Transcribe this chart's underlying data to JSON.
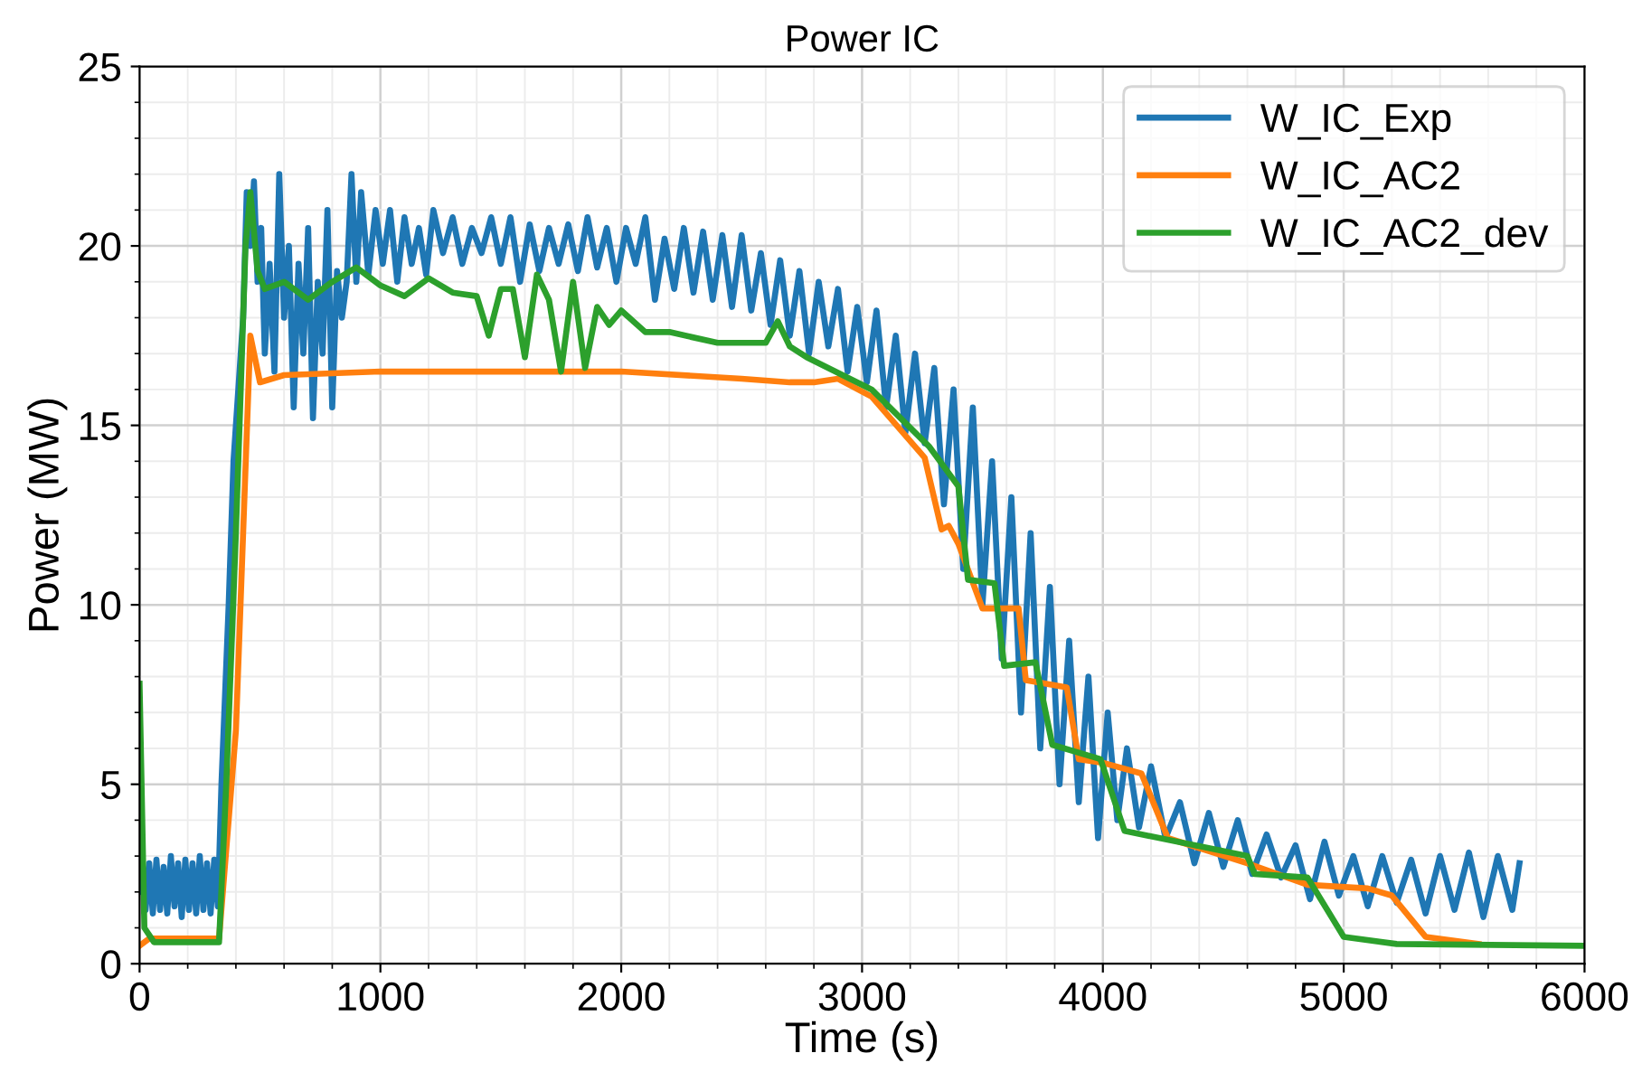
{
  "chart_data": {
    "type": "line",
    "title": "Power IC",
    "xlabel": "Time (s)",
    "ylabel": "Power (MW)",
    "xlim": [
      0,
      6000
    ],
    "ylim": [
      0,
      25
    ],
    "xticks": [
      0,
      1000,
      2000,
      3000,
      4000,
      5000,
      6000
    ],
    "yticks": [
      0,
      5,
      10,
      15,
      20,
      25
    ],
    "grid": true,
    "legend": "top right",
    "line_style": "solid",
    "marker": "none",
    "series": [
      {
        "name": "W_IC_Exp",
        "color": "#1f77b4",
        "x": [
          0,
          10,
          25,
          40,
          55,
          70,
          85,
          100,
          115,
          130,
          145,
          160,
          175,
          190,
          205,
          220,
          235,
          250,
          265,
          280,
          295,
          310,
          325,
          340,
          370,
          390,
          410,
          430,
          445,
          460,
          475,
          490,
          505,
          520,
          540,
          560,
          580,
          600,
          620,
          640,
          660,
          680,
          700,
          720,
          740,
          760,
          780,
          800,
          820,
          840,
          860,
          880,
          900,
          920,
          950,
          980,
          1010,
          1040,
          1070,
          1100,
          1130,
          1160,
          1190,
          1220,
          1260,
          1300,
          1340,
          1380,
          1420,
          1460,
          1500,
          1540,
          1580,
          1620,
          1660,
          1700,
          1740,
          1780,
          1820,
          1860,
          1900,
          1940,
          1980,
          2020,
          2060,
          2100,
          2140,
          2180,
          2220,
          2260,
          2300,
          2340,
          2380,
          2420,
          2460,
          2500,
          2540,
          2580,
          2620,
          2660,
          2700,
          2740,
          2780,
          2820,
          2860,
          2900,
          2940,
          2980,
          3020,
          3060,
          3100,
          3140,
          3180,
          3220,
          3260,
          3300,
          3340,
          3380,
          3420,
          3460,
          3500,
          3540,
          3580,
          3620,
          3660,
          3700,
          3740,
          3780,
          3820,
          3860,
          3900,
          3940,
          3980,
          4020,
          4060,
          4100,
          4150,
          4200,
          4260,
          4320,
          4380,
          4440,
          4500,
          4560,
          4620,
          4680,
          4740,
          4800,
          4860,
          4920,
          4980,
          5040,
          5100,
          5160,
          5220,
          5280,
          5340,
          5400,
          5460,
          5520,
          5580,
          5640,
          5700,
          5730
        ],
        "values": [
          2.0,
          3.0,
          1.5,
          2.8,
          1.4,
          2.9,
          1.5,
          2.7,
          1.4,
          3.0,
          1.6,
          2.8,
          1.3,
          2.9,
          1.5,
          2.8,
          1.4,
          3.0,
          1.5,
          2.8,
          1.4,
          2.9,
          1.6,
          5,
          10,
          14,
          16,
          18,
          21.5,
          20,
          21.8,
          19,
          20.5,
          17,
          19.5,
          16.5,
          22,
          18,
          20,
          15.5,
          19.5,
          17,
          20.5,
          15.2,
          19,
          17,
          21,
          15.5,
          19.3,
          18,
          19,
          22,
          19,
          21.5,
          19.2,
          21,
          19.5,
          21,
          19,
          20.8,
          19.5,
          20.5,
          19.2,
          21,
          19.8,
          20.8,
          19.5,
          20.5,
          19.8,
          20.8,
          19.5,
          20.8,
          19,
          20.6,
          19.3,
          20.5,
          19.5,
          20.6,
          19.3,
          20.8,
          19.4,
          20.5,
          19,
          20.5,
          19.5,
          20.8,
          18.5,
          20.2,
          18.8,
          20.5,
          18.7,
          20.4,
          18.5,
          20.3,
          18.3,
          20.3,
          18.2,
          19.8,
          17.8,
          19.6,
          17.5,
          19.3,
          17.0,
          19.0,
          17.2,
          18.8,
          16.5,
          18.3,
          16.2,
          18.2,
          15.5,
          17.5,
          14.8,
          17.0,
          14.5,
          16.6,
          12.8,
          16.0,
          11.0,
          15.5,
          10.0,
          14.0,
          8.5,
          13.0,
          7.0,
          12.0,
          6.0,
          10.5,
          5.0,
          9.0,
          4.5,
          8.0,
          3.5,
          7.0,
          4.0,
          6.0,
          3.8,
          5.5,
          3.5,
          4.5,
          2.8,
          4.2,
          2.7,
          4.0,
          2.5,
          3.6,
          2.4,
          3.3,
          1.8,
          3.4,
          1.9,
          3.0,
          1.6,
          3.0,
          1.7,
          2.9,
          1.4,
          3.0,
          1.5,
          3.1,
          1.3,
          3.0,
          1.5,
          2.8
        ]
      },
      {
        "name": "W_IC_AC2",
        "color": "#ff7f0e",
        "x": [
          0,
          40,
          330,
          400,
          430,
          460,
          500,
          600,
          1000,
          2000,
          2500,
          2700,
          2800,
          2900,
          3040,
          3260,
          3330,
          3360,
          3400,
          3500,
          3650,
          3680,
          3850,
          3900,
          4000,
          4160,
          4270,
          4600,
          4850,
          5100,
          5200,
          5340,
          5560
        ],
        "values": [
          0.5,
          0.7,
          0.7,
          6.5,
          12,
          17.5,
          16.2,
          16.4,
          16.5,
          16.5,
          16.3,
          16.2,
          16.2,
          16.3,
          15.8,
          14.1,
          12.1,
          12.2,
          11.7,
          9.9,
          9.9,
          7.9,
          7.7,
          5.7,
          5.6,
          5.3,
          3.5,
          2.8,
          2.2,
          2.1,
          1.9,
          0.75,
          0.55
        ]
      },
      {
        "name": "W_IC_AC2_dev",
        "color": "#2ca02c",
        "x": [
          0,
          20,
          60,
          330,
          360,
          400,
          440,
          460,
          490,
          520,
          600,
          700,
          800,
          900,
          1000,
          1100,
          1200,
          1300,
          1400,
          1450,
          1500,
          1550,
          1600,
          1650,
          1700,
          1750,
          1800,
          1850,
          1900,
          1950,
          2000,
          2100,
          2200,
          2400,
          2600,
          2650,
          2700,
          2770,
          3040,
          3280,
          3400,
          3440,
          3550,
          3590,
          3720,
          3790,
          3990,
          4090,
          4600,
          4630,
          4850,
          5000,
          5220,
          6000
        ],
        "values": [
          7.8,
          1,
          0.6,
          0.6,
          5,
          12,
          20,
          21.5,
          19.3,
          18.8,
          19.0,
          18.5,
          19.0,
          19.4,
          18.9,
          18.6,
          19.1,
          18.7,
          18.6,
          17.5,
          18.8,
          18.8,
          16.9,
          19.2,
          18.5,
          16.5,
          19.0,
          16.6,
          18.3,
          17.8,
          18.2,
          17.6,
          17.6,
          17.3,
          17.3,
          17.9,
          17.2,
          16.9,
          16.0,
          14.4,
          13.3,
          10.7,
          10.6,
          8.3,
          8.4,
          6.1,
          5.7,
          3.7,
          3.0,
          2.5,
          2.4,
          0.75,
          0.55,
          0.5
        ]
      }
    ]
  }
}
